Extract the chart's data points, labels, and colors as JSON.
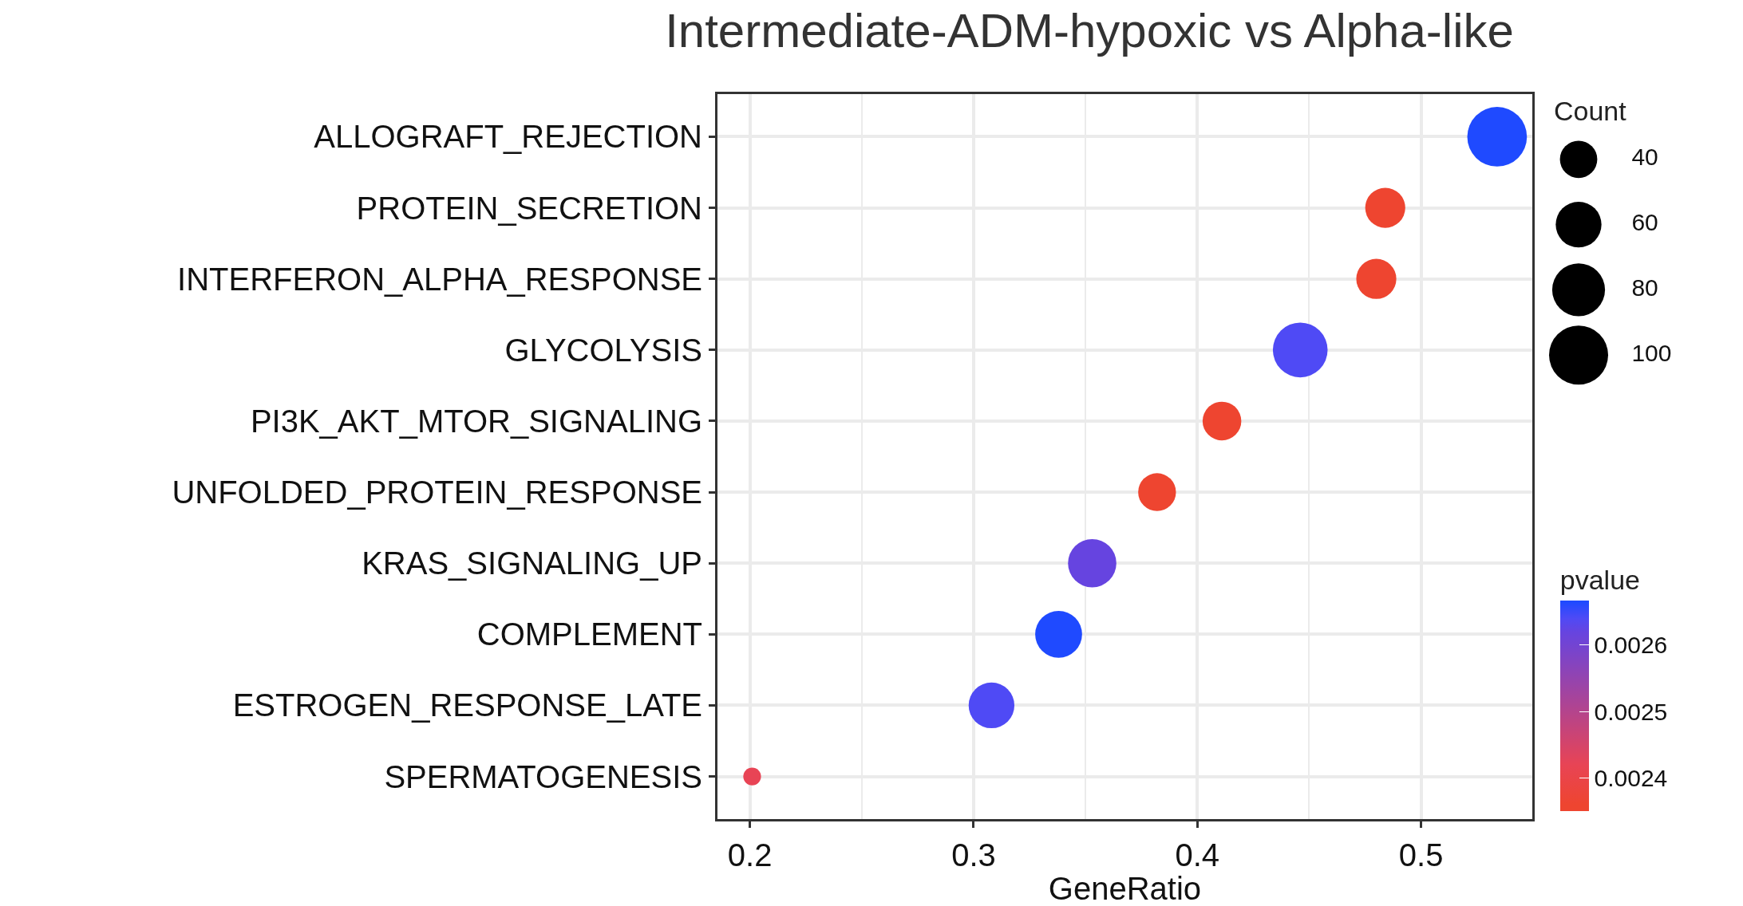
{
  "chart_data": {
    "type": "bubble",
    "title": "Intermediate-ADM-hypoxic vs Alpha-like",
    "xlabel": "GeneRatio",
    "legend_title": "Count",
    "clabel": "pvalue",
    "orientation": "horizontal",
    "categories": [
      "ALLOGRAFT_REJECTION",
      "PROTEIN_SECRETION",
      "INTERFERON_ALPHA_RESPONSE",
      "GLYCOLYSIS",
      "PI3K_AKT_MTOR_SIGNALING",
      "UNFOLDED_PROTEIN_RESPONSE",
      "KRAS_SIGNALING_UP",
      "COMPLEMENT",
      "ESTROGEN_RESPONSE_LATE",
      "SPERMATOGENESIS"
    ],
    "values": [
      0.534,
      0.484,
      0.48,
      0.446,
      0.411,
      0.382,
      0.353,
      0.338,
      0.308,
      0.201
    ],
    "sizes": [
      102,
      46,
      46,
      86,
      43,
      41,
      67,
      63,
      60,
      9
    ],
    "size_legend": [
      40,
      60,
      80,
      100
    ],
    "cvalues": [
      0.002665,
      0.00236,
      0.00236,
      0.00264,
      0.00236,
      0.00236,
      0.00262,
      0.002665,
      0.00264,
      0.00242
    ],
    "colors": [
      "#1f4aff",
      "#ee4530",
      "#ee4530",
      "#4f4af5",
      "#ee4530",
      "#ee4530",
      "#6644e0",
      "#1f4aff",
      "#4f4af5",
      "#e84455"
    ],
    "clim": [
      0.00235,
      0.002667
    ],
    "cticks": [
      0.0024,
      0.0025,
      0.0026
    ],
    "xlim": [
      0.1855,
      0.5497
    ],
    "xticks": [
      0.2,
      0.3,
      0.4,
      0.5
    ],
    "grid": true
  }
}
